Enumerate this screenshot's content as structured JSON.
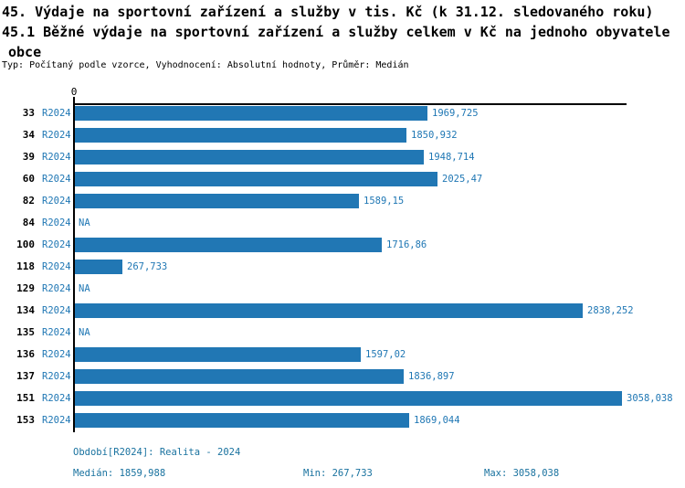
{
  "title": {
    "line1": "45. Výdaje na sportovní zařízení a služby v tis. Kč (k 31.12. sledovaného roku)",
    "line2": "45.1 Běžné výdaje na sportovní zařízení a služby celkem v Kč na jednoho obyvatele",
    "line3": "obce",
    "meta": "Typ: Počítaný podle vzorce, Vyhodnocení: Absolutní hodnoty, Průměr: Medián"
  },
  "chart_data": {
    "type": "bar",
    "orientation": "horizontal",
    "title": "45.1 Běžné výdaje na sportovní zařízení a služby celkem v Kč na jednoho obyvatele obce",
    "series_label": "R2024",
    "na_label": "NA",
    "categories": [
      "33",
      "34",
      "39",
      "60",
      "82",
      "84",
      "100",
      "118",
      "129",
      "134",
      "135",
      "136",
      "137",
      "151",
      "153"
    ],
    "values": [
      1969.725,
      1850.932,
      1948.714,
      2025.47,
      1589.15,
      null,
      1716.86,
      267.733,
      null,
      2838.252,
      null,
      1597.02,
      1836.897,
      3058.038,
      1869.044
    ],
    "value_labels": [
      "1969,725",
      "1850,932",
      "1948,714",
      "2025,47",
      "1589,15",
      "NA",
      "1716,86",
      "267,733",
      "NA",
      "2838,252",
      "NA",
      "1597,02",
      "1836,897",
      "3058,038",
      "1869,044"
    ],
    "axis": {
      "zero_label": "0",
      "min": 0,
      "max": 3058.038,
      "median": 1859.988,
      "grid": false,
      "median_line": true
    },
    "colors": {
      "bar": "#2177b4",
      "value_text": "#1f77b4",
      "series_text": "#1f77b4",
      "median_line": "#2177b4",
      "axis": "#000000",
      "legend_text": "#19729f"
    }
  },
  "legend": {
    "period": "Období[R2024]: Realita - 2024",
    "median": "Medián: 1859,988",
    "min": "Min: 267,733",
    "max": "Max: 3058,038"
  }
}
